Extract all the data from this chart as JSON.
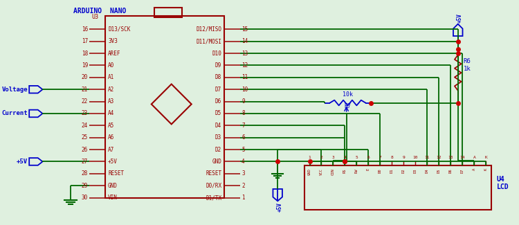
{
  "bg_color": "#dff0df",
  "dark_red": "#990000",
  "green": "#006600",
  "blue": "#0000CC",
  "red_dot": "#CC0000",
  "title": "ARDUINO  NANO",
  "u3_label": "U3",
  "u4_label": "U4\nLCD",
  "left_pins": [
    "16",
    "17",
    "18",
    "19",
    "20",
    "21",
    "22",
    "23",
    "24",
    "25",
    "26",
    "27",
    "28",
    "29",
    "30"
  ],
  "left_labels": [
    "D13/SCK",
    "3V3",
    "AREF",
    "A0",
    "A1",
    "A2",
    "A3",
    "A4",
    "A5",
    "A6",
    "A7",
    "+5V",
    "RESET",
    "GND",
    "VIN"
  ],
  "right_pins": [
    "15",
    "14",
    "13",
    "12",
    "11",
    "10",
    "9",
    "8",
    "7",
    "6",
    "5",
    "4",
    "3",
    "2",
    "1"
  ],
  "right_labels": [
    "D12/MISO",
    "D11/MOSI",
    "D10",
    "D9",
    "D8",
    "D7",
    "D6",
    "D5",
    "D4",
    "D3",
    "D2",
    "GND",
    "RESET",
    "D0/RX",
    "D1/TX"
  ],
  "lcd_pins": [
    "GND",
    "VCC",
    "CON",
    "RS",
    "RW",
    "E",
    "D0",
    "D1",
    "D2",
    "D3",
    "D4",
    "D5",
    "D6",
    "D7",
    "A",
    "K"
  ]
}
